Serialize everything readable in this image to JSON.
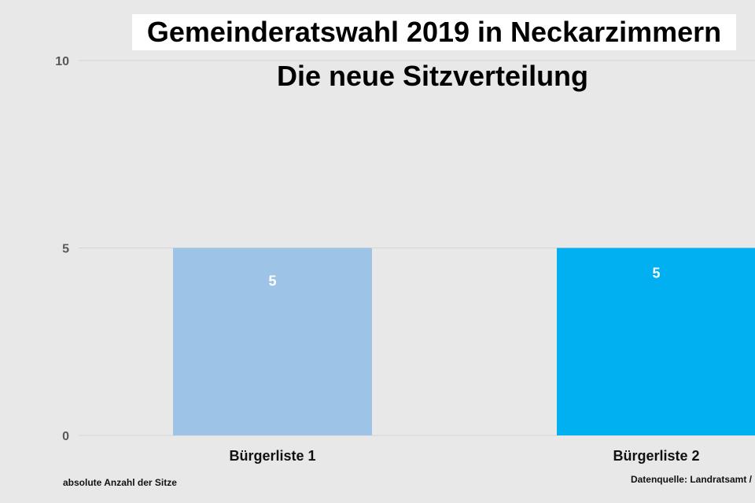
{
  "chart_data": {
    "type": "bar",
    "title": "Gemeinderatswahl 2019 in Neckarzimmern",
    "subtitle": "Die neue Sitzverteilung",
    "categories": [
      "Bürgerliste 1",
      "Bürgerliste 2"
    ],
    "values": [
      5,
      5
    ],
    "value_labels": [
      "5",
      "5"
    ],
    "colors": [
      "#9dc3e6",
      "#00b0f0"
    ],
    "ylim": [
      0,
      10
    ],
    "yticks": [
      0,
      5,
      10
    ],
    "ytick_labels": [
      "0",
      "5",
      "10"
    ],
    "grid": true,
    "ylabel_note": "absolute Anzahl der Sitze",
    "source": "Datenquelle: Landratsamt /"
  }
}
